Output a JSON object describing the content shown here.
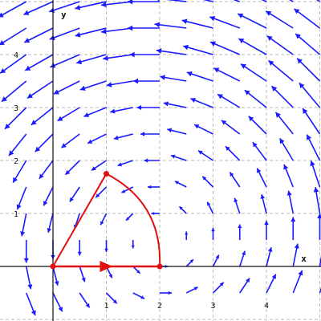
{
  "chart_data": {
    "type": "vector-field",
    "title": "",
    "xlabel": "x",
    "ylabel": "y",
    "xlim": [
      -1,
      5
    ],
    "ylim": [
      -1,
      5
    ],
    "grid": true,
    "grid_style": "dashed",
    "x_ticks": [
      "1",
      "2",
      "3",
      "4"
    ],
    "y_ticks": [
      "1",
      "2",
      "3",
      "4"
    ],
    "vector_field": {
      "description_free": true,
      "center": [
        2,
        0.5
      ],
      "x_range": [
        -0.5,
        5.5
      ],
      "y_range": [
        -0.5,
        5.5
      ],
      "step": 0.5,
      "color": "#1a1aff"
    },
    "curve": {
      "color": "#e01010",
      "vertices": [
        [
          0,
          0
        ],
        [
          2,
          0
        ],
        [
          1,
          1.75
        ]
      ],
      "arc": {
        "center": [
          0,
          0
        ],
        "radius": 2,
        "from_deg": 0,
        "to_deg": 60
      }
    }
  },
  "colors": {
    "axis": "#111111",
    "grid": "#bbbbbb",
    "field": "#1a1aff",
    "curve": "#e01010"
  }
}
